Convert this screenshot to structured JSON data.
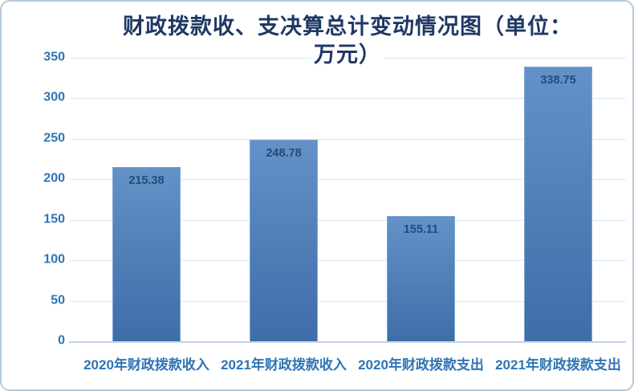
{
  "chart_data": {
    "type": "bar",
    "title": "财政拨款收、支决算总计变动情况图（单位：万元）",
    "title_lines": [
      "财政拨款收、支决算总计变动情况图（单位：",
      "万元）"
    ],
    "unit": "万元",
    "categories": [
      "2020年财政拨款收入",
      "2021年财政拨款收入",
      "2020年财政拨款支出",
      "2021年财政拨款支出"
    ],
    "values": [
      215.38,
      248.78,
      155.11,
      338.75
    ],
    "value_labels": [
      "215.38",
      "248.78",
      "155.11",
      "338.75"
    ],
    "xlabel": "",
    "ylabel": "",
    "ylim": [
      0,
      350
    ],
    "y_ticks": [
      0,
      50,
      100,
      150,
      200,
      250,
      300,
      350
    ],
    "y_tick_labels": [
      "0",
      "50",
      "100",
      "150",
      "200",
      "250",
      "300",
      "350"
    ],
    "grid": true,
    "legend_position": "none",
    "colors": {
      "bar_top": "#6391c8",
      "bar_bottom": "#3e6da8",
      "title": "#1f3864",
      "axis_label": "#2e74b5",
      "value_label": "#1f4e79",
      "gridline": "#dde7f3",
      "axis_line": "#c2d4e8",
      "frame_border": "#b7c9de"
    }
  }
}
